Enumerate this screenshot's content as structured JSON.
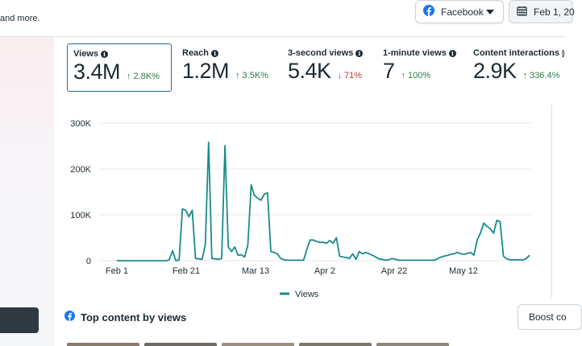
{
  "header": {
    "intro_text_fragment": "and more.",
    "platform_select": {
      "label": "Facebook",
      "icon": "facebook-icon"
    },
    "date_range": {
      "label": "Feb 1, 20",
      "icon": "calendar-icon"
    }
  },
  "metrics": [
    {
      "label": "Views",
      "value": "3.4M",
      "change": "2.8K%",
      "direction": "up",
      "selected": true
    },
    {
      "label": "Reach",
      "value": "1.2M",
      "change": "3.5K%",
      "direction": "up",
      "selected": false
    },
    {
      "label": "3-second views",
      "value": "5.4K",
      "change": "71%",
      "direction": "down",
      "selected": false
    },
    {
      "label": "1-minute views",
      "value": "7",
      "change": "100%",
      "direction": "up",
      "selected": false
    },
    {
      "label": "Content interactions",
      "value": "2.9K",
      "change": "336.4%",
      "direction": "up",
      "selected": false
    }
  ],
  "chart_data": {
    "type": "line",
    "x_tick_labels": [
      "Feb 1",
      "Feb 21",
      "Mar 13",
      "Apr 2",
      "Apr 22",
      "May 12"
    ],
    "y_tick_labels": [
      "0",
      "100K",
      "200K",
      "300K"
    ],
    "ylim": [
      0,
      300000
    ],
    "grid": true,
    "legend_position": "bottom",
    "color": "#1a8a8a",
    "series": [
      {
        "name": "Views",
        "values": [
          0,
          0,
          0,
          0,
          0,
          0,
          0,
          0,
          0,
          0,
          0,
          0,
          0,
          0,
          0,
          0,
          2000,
          22000,
          0,
          2000,
          113000,
          110000,
          96000,
          110000,
          5000,
          4000,
          3000,
          35000,
          258000,
          5000,
          4000,
          3000,
          5000,
          251000,
          30000,
          20000,
          30000,
          12000,
          13000,
          8000,
          35000,
          165000,
          142000,
          136000,
          132000,
          145000,
          148000,
          20000,
          18000,
          15000,
          5000,
          2000,
          1000,
          1000,
          1000,
          1000,
          1000,
          1000,
          25000,
          45000,
          45000,
          42000,
          40000,
          40000,
          38000,
          44000,
          38000,
          50000,
          10000,
          8000,
          7000,
          5000,
          15000,
          3000,
          20000,
          15000,
          18000,
          15000,
          12000,
          8000,
          4000,
          3000,
          1000,
          2000,
          5000,
          3000,
          1000,
          1000,
          1000,
          1000,
          1000,
          1000,
          1000,
          1000,
          1000,
          1000,
          1000,
          1000,
          5000,
          8000,
          10000,
          12000,
          14000,
          15000,
          18000,
          15000,
          14000,
          16000,
          18000,
          12000,
          45000,
          60000,
          82000,
          75000,
          70000,
          60000,
          88000,
          85000,
          10000,
          4000,
          2000,
          2000,
          2000,
          2000,
          2000,
          5000,
          12000
        ]
      }
    ]
  },
  "legend": {
    "label": "Views"
  },
  "top_content": {
    "title": "Top content by views",
    "boost_button_label": "Boost co"
  }
}
